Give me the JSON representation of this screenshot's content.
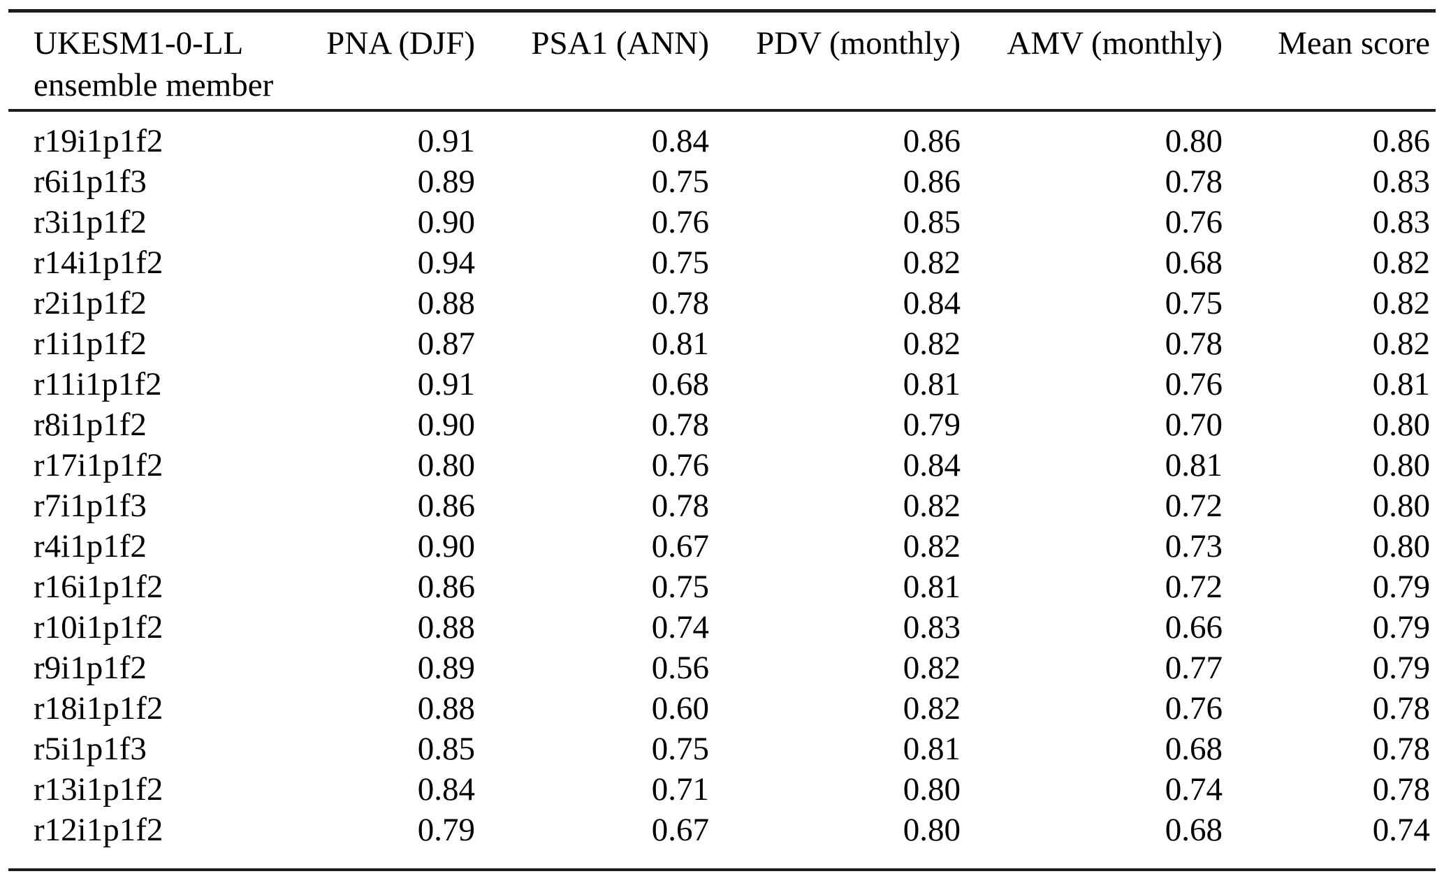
{
  "table": {
    "header": {
      "member_col_line1": "UKESM1-0-LL",
      "member_col_line2": "ensemble member",
      "score_cols": [
        "PNA (DJF)",
        "PSA1 (ANN)",
        "PDV (monthly)",
        "AMV (monthly)",
        "Mean score"
      ]
    },
    "rows": [
      {
        "member": "r19i1p1f2",
        "values": [
          "0.91",
          "0.84",
          "0.86",
          "0.80",
          "0.86"
        ]
      },
      {
        "member": "r6i1p1f3",
        "values": [
          "0.89",
          "0.75",
          "0.86",
          "0.78",
          "0.83"
        ]
      },
      {
        "member": "r3i1p1f2",
        "values": [
          "0.90",
          "0.76",
          "0.85",
          "0.76",
          "0.83"
        ]
      },
      {
        "member": "r14i1p1f2",
        "values": [
          "0.94",
          "0.75",
          "0.82",
          "0.68",
          "0.82"
        ]
      },
      {
        "member": "r2i1p1f2",
        "values": [
          "0.88",
          "0.78",
          "0.84",
          "0.75",
          "0.82"
        ]
      },
      {
        "member": "r1i1p1f2",
        "values": [
          "0.87",
          "0.81",
          "0.82",
          "0.78",
          "0.82"
        ]
      },
      {
        "member": "r11i1p1f2",
        "values": [
          "0.91",
          "0.68",
          "0.81",
          "0.76",
          "0.81"
        ]
      },
      {
        "member": "r8i1p1f2",
        "values": [
          "0.90",
          "0.78",
          "0.79",
          "0.70",
          "0.80"
        ]
      },
      {
        "member": "r17i1p1f2",
        "values": [
          "0.80",
          "0.76",
          "0.84",
          "0.81",
          "0.80"
        ]
      },
      {
        "member": "r7i1p1f3",
        "values": [
          "0.86",
          "0.78",
          "0.82",
          "0.72",
          "0.80"
        ]
      },
      {
        "member": "r4i1p1f2",
        "values": [
          "0.90",
          "0.67",
          "0.82",
          "0.73",
          "0.80"
        ]
      },
      {
        "member": "r16i1p1f2",
        "values": [
          "0.86",
          "0.75",
          "0.81",
          "0.72",
          "0.79"
        ]
      },
      {
        "member": "r10i1p1f2",
        "values": [
          "0.88",
          "0.74",
          "0.83",
          "0.66",
          "0.79"
        ]
      },
      {
        "member": "r9i1p1f2",
        "values": [
          "0.89",
          "0.56",
          "0.82",
          "0.77",
          "0.79"
        ]
      },
      {
        "member": "r18i1p1f2",
        "values": [
          "0.88",
          "0.60",
          "0.82",
          "0.76",
          "0.78"
        ]
      },
      {
        "member": "r5i1p1f3",
        "values": [
          "0.85",
          "0.75",
          "0.81",
          "0.68",
          "0.78"
        ]
      },
      {
        "member": "r13i1p1f2",
        "values": [
          "0.84",
          "0.71",
          "0.80",
          "0.74",
          "0.78"
        ]
      },
      {
        "member": "r12i1p1f2",
        "values": [
          "0.79",
          "0.67",
          "0.80",
          "0.68",
          "0.74"
        ]
      }
    ]
  }
}
